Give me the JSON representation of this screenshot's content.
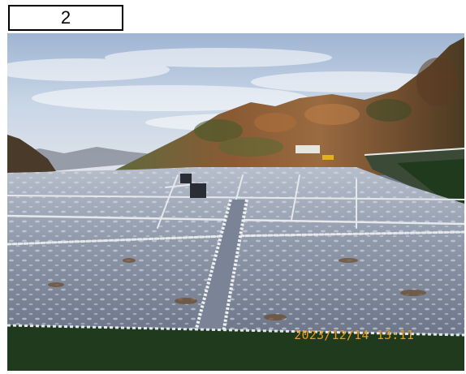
{
  "label": {
    "number": "2"
  },
  "photo": {
    "timestamp": "2023/12/14 13:11",
    "timestamp_color": "#e2a020",
    "sky_color": "#c9d6e6",
    "hill_color": "#7a5a3a",
    "membrane_color": "#8d97a8",
    "border_grass_color": "#1f3a1c"
  }
}
